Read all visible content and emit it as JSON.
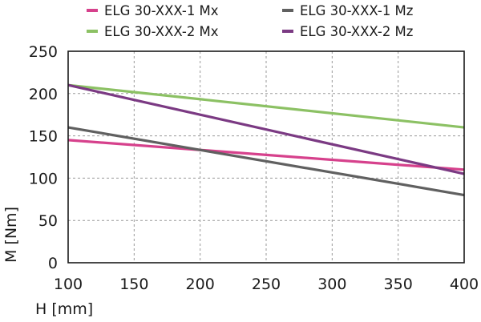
{
  "chart_data": {
    "type": "line",
    "title": "",
    "xlabel": "H [mm]",
    "ylabel": "M [Nm]",
    "xlim": [
      100,
      400
    ],
    "ylim": [
      0,
      250
    ],
    "xticks": [
      100,
      150,
      200,
      250,
      300,
      350,
      400
    ],
    "yticks": [
      0,
      50,
      100,
      150,
      200,
      250
    ],
    "grid": true,
    "legend_position": "top",
    "series": [
      {
        "name": "ELG 30-XXX-1 Mx",
        "color": "#d6418c",
        "x": [
          100,
          400
        ],
        "y": [
          145,
          110
        ]
      },
      {
        "name": "ELG 30-XXX-2 Mx",
        "color": "#8cc164",
        "x": [
          100,
          400
        ],
        "y": [
          210,
          160
        ]
      },
      {
        "name": "ELG 30-XXX-1 Mz",
        "color": "#606060",
        "x": [
          100,
          400
        ],
        "y": [
          160,
          80
        ]
      },
      {
        "name": "ELG 30-XXX-2 Mz",
        "color": "#7b3a83",
        "x": [
          100,
          400
        ],
        "y": [
          210,
          105
        ]
      }
    ]
  }
}
